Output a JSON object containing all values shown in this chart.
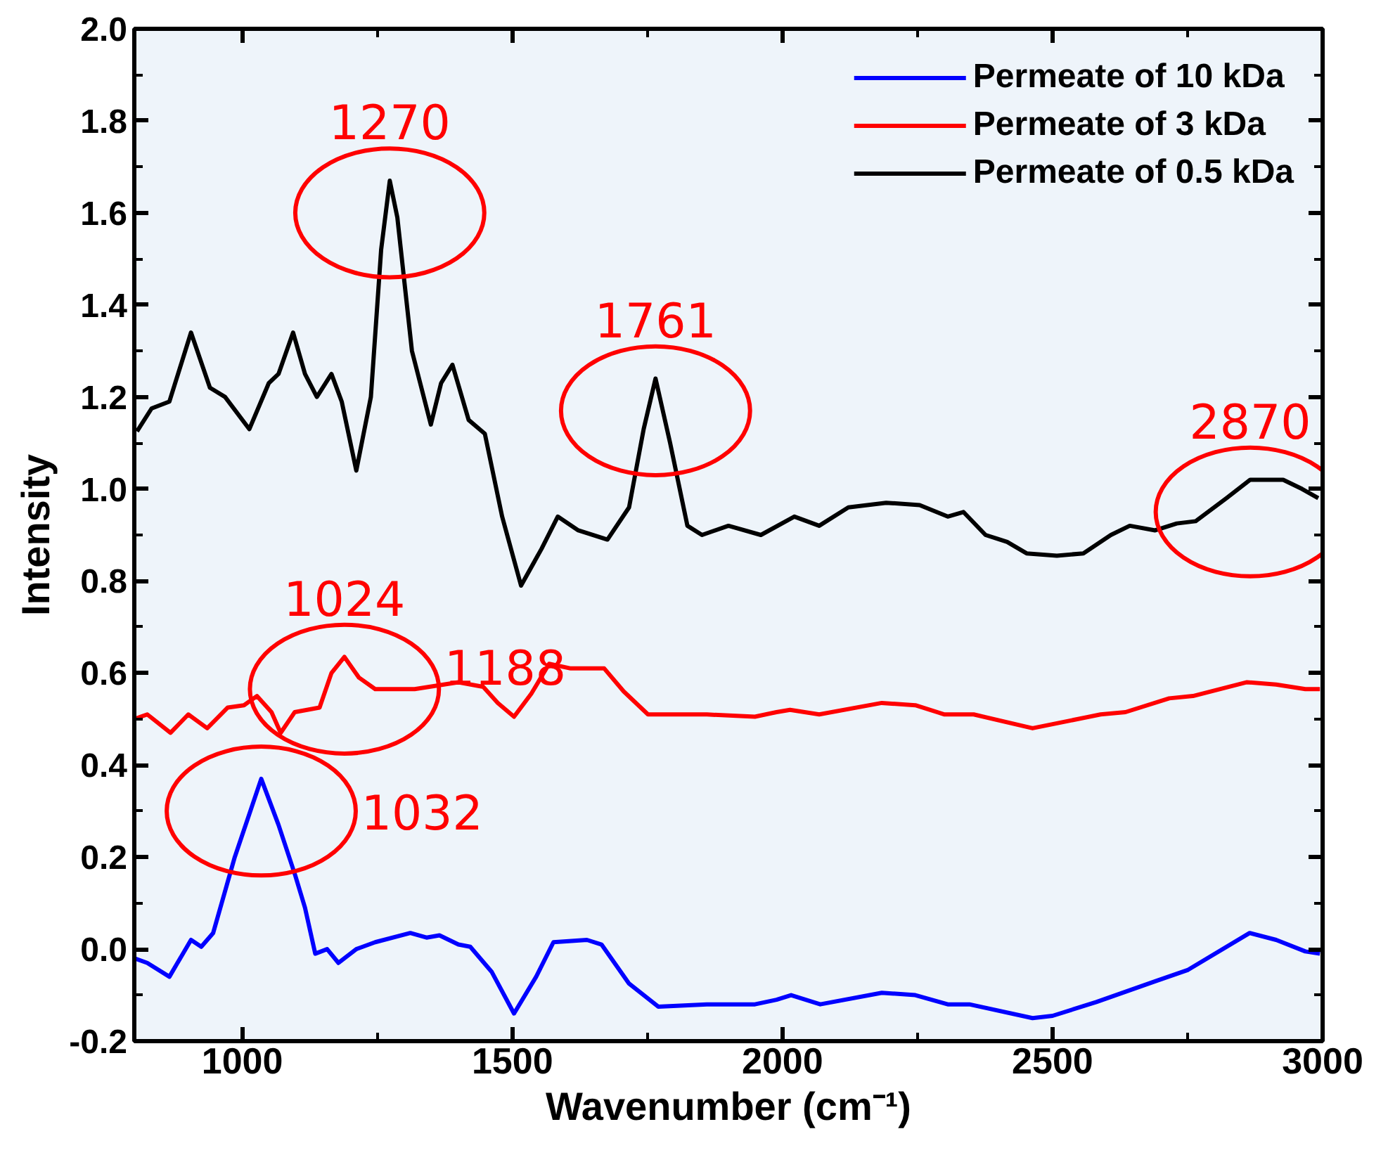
{
  "chart_data": {
    "type": "line",
    "xlabel": "Wavenumber (cm⁻¹)",
    "ylabel": "Intensity",
    "xlim": [
      800,
      3000
    ],
    "xticks": [
      1000,
      1500,
      2000,
      2500,
      3000
    ],
    "ylim": [
      -0.2,
      2.0
    ],
    "yticks": [
      -0.2,
      {
        "value": 0,
        "label": "0.0"
      },
      0.2,
      0.4,
      0.6,
      0.8,
      {
        "value": 1,
        "label": "1.0"
      },
      1.2,
      1.4,
      1.6,
      1.8,
      {
        "value": 2,
        "label": "2.0"
      }
    ],
    "grid": false,
    "legend": "top right",
    "line_style": "solid",
    "marker": "none",
    "series": [
      {
        "name": "Permeate of 10 kDa",
        "color": "#0000ff",
        "x": [
          800,
          824,
          865,
          905,
          924,
          946,
          986,
          1035,
          1067,
          1098,
          1116,
          1135,
          1157,
          1178,
          1211,
          1246,
          1311,
          1341,
          1365,
          1400,
          1422,
          1462,
          1503,
          1544,
          1576,
          1638,
          1665,
          1716,
          1770,
          1860,
          1949,
          1989,
          2016,
          2070,
          2184,
          2246,
          2306,
          2346,
          2463,
          2500,
          2581,
          2690,
          2751,
          2865,
          2914,
          2968,
          2995
        ],
        "values": [
          -0.02,
          -0.03,
          -0.06,
          0.02,
          0.005,
          0.035,
          0.2,
          0.37,
          0.27,
          0.16,
          0.09,
          -0.01,
          0.0,
          -0.03,
          0.0,
          0.015,
          0.035,
          0.025,
          0.03,
          0.01,
          0.005,
          -0.05,
          -0.14,
          -0.06,
          0.015,
          0.02,
          0.01,
          -0.075,
          -0.125,
          -0.12,
          -0.12,
          -0.11,
          -0.1,
          -0.12,
          -0.095,
          -0.1,
          -0.12,
          -0.12,
          -0.15,
          -0.145,
          -0.115,
          -0.07,
          -0.045,
          0.035,
          0.02,
          -0.005,
          -0.01
        ]
      },
      {
        "name": "Permeate of 3 kDa",
        "color": "#ff0000",
        "x": [
          800,
          824,
          867,
          900,
          935,
          973,
          1003,
          1027,
          1054,
          1071,
          1097,
          1143,
          1165,
          1189,
          1216,
          1246,
          1319,
          1400,
          1446,
          1473,
          1503,
          1535,
          1568,
          1608,
          1670,
          1706,
          1751,
          1860,
          1949,
          1989,
          2014,
          2068,
          2184,
          2246,
          2300,
          2354,
          2463,
          2589,
          2635,
          2716,
          2760,
          2860,
          2914,
          2968,
          2995
        ],
        "values": [
          0.5,
          0.51,
          0.47,
          0.51,
          0.48,
          0.525,
          0.53,
          0.55,
          0.515,
          0.47,
          0.515,
          0.525,
          0.6,
          0.635,
          0.59,
          0.565,
          0.565,
          0.58,
          0.57,
          0.535,
          0.505,
          0.555,
          0.62,
          0.61,
          0.61,
          0.56,
          0.51,
          0.51,
          0.505,
          0.515,
          0.52,
          0.51,
          0.535,
          0.53,
          0.51,
          0.51,
          0.48,
          0.51,
          0.515,
          0.545,
          0.55,
          0.58,
          0.575,
          0.565,
          0.565
        ]
      },
      {
        "name": "Permeate of 0.5 kDa",
        "color": "#000000",
        "x": [
          805,
          832,
          865,
          905,
          940,
          968,
          1013,
          1049,
          1067,
          1094,
          1116,
          1138,
          1165,
          1184,
          1211,
          1238,
          1257,
          1273,
          1287,
          1314,
          1349,
          1368,
          1389,
          1419,
          1449,
          1481,
          1516,
          1554,
          1584,
          1622,
          1676,
          1716,
          1743,
          1765,
          1792,
          1824,
          1851,
          1900,
          1960,
          2022,
          2068,
          2122,
          2192,
          2254,
          2306,
          2335,
          2376,
          2416,
          2452,
          2508,
          2557,
          2608,
          2643,
          2690,
          2730,
          2765,
          2822,
          2866,
          2927,
          2962,
          2992
        ],
        "values": [
          1.125,
          1.175,
          1.19,
          1.34,
          1.22,
          1.2,
          1.13,
          1.23,
          1.25,
          1.34,
          1.25,
          1.2,
          1.25,
          1.19,
          1.04,
          1.2,
          1.52,
          1.67,
          1.59,
          1.3,
          1.14,
          1.23,
          1.27,
          1.15,
          1.12,
          0.94,
          0.79,
          0.87,
          0.94,
          0.91,
          0.89,
          0.96,
          1.13,
          1.24,
          1.1,
          0.92,
          0.9,
          0.92,
          0.9,
          0.94,
          0.92,
          0.96,
          0.97,
          0.965,
          0.94,
          0.95,
          0.9,
          0.885,
          0.86,
          0.855,
          0.86,
          0.9,
          0.92,
          0.91,
          0.925,
          0.93,
          0.98,
          1.02,
          1.02,
          1.0,
          0.98
        ]
      }
    ],
    "annotations": [
      {
        "text": "1270",
        "x": 1273,
        "y": 1.67
      },
      {
        "text": "1761",
        "x": 1765,
        "y": 1.24
      },
      {
        "text": "2870",
        "x": 2866,
        "y": 1.02
      },
      {
        "text": "1024",
        "x": 1189,
        "y": 0.635
      },
      "1188",
      {
        "text": "1032",
        "x": 1035,
        "y": 0.37
      }
    ]
  }
}
